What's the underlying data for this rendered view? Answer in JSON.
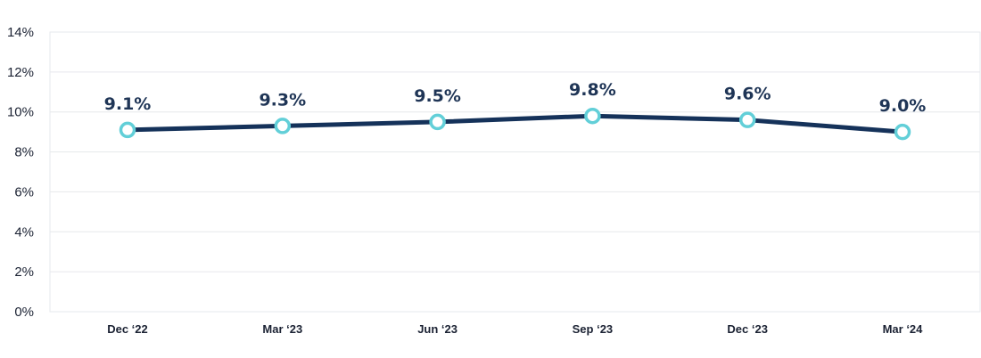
{
  "chart_data": {
    "type": "line",
    "categories": [
      "Dec ‘22",
      "Mar ‘23",
      "Jun ‘23",
      "Sep ‘23",
      "Dec ‘23",
      "Mar ‘24"
    ],
    "series": [
      {
        "values": [
          9.1,
          9.3,
          9.5,
          9.8,
          9.6,
          9.0
        ],
        "data_labels": [
          "9.1%",
          "9.3%",
          "9.5%",
          "9.8%",
          "9.6%",
          "9.0%"
        ]
      }
    ],
    "y_ticks": [
      0,
      2,
      4,
      6,
      8,
      10,
      12,
      14
    ],
    "y_tick_labels": [
      "0%",
      "2%",
      "4%",
      "6%",
      "8%",
      "10%",
      "12%",
      "14%"
    ],
    "ylim": [
      0,
      14
    ],
    "grid": true,
    "legend": "none",
    "colors": {
      "line": "#15325a",
      "marker_stroke": "#62cfd8",
      "marker_fill": "#ffffff",
      "label": "#1f3556",
      "grid": "#e6e8ec"
    }
  }
}
